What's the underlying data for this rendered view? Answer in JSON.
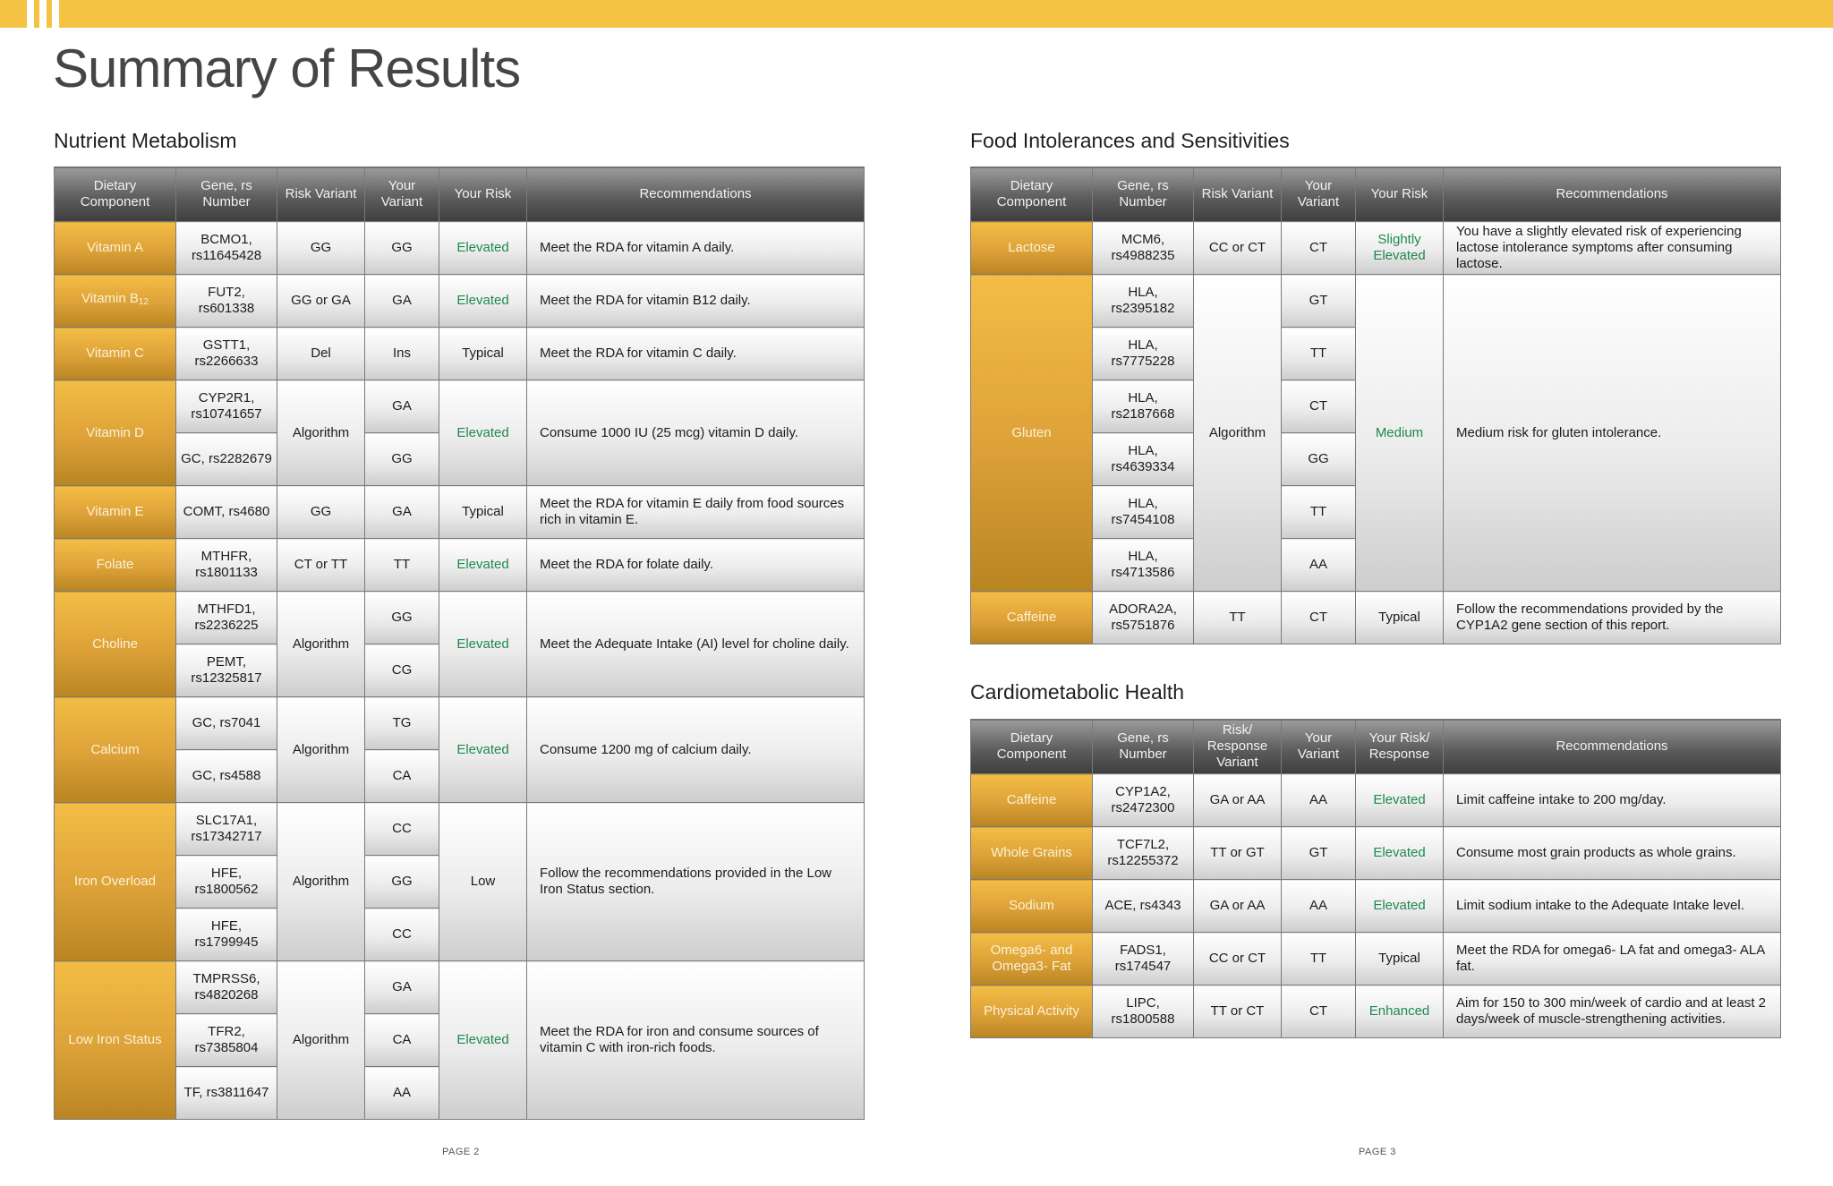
{
  "page_title": "Summary of Results",
  "colors": {
    "accent": "#f5c344",
    "component_gold": "#dca138",
    "header_gray": "#5d5d5d",
    "risk_green": "#1e8a4e"
  },
  "nutrient": {
    "title": "Nutrient Metabolism",
    "headers": [
      "Dietary Component",
      "Gene, rs Number",
      "Risk Variant",
      "Your Variant",
      "Your Risk",
      "Recommendations"
    ],
    "rows": [
      {
        "component": "Vitamin A",
        "genes": [
          "BCMO1, rs11645428"
        ],
        "risk_variant": "GG",
        "variants": [
          "GG"
        ],
        "risk": "Elevated",
        "rec": "Meet the RDA for vitamin A daily."
      },
      {
        "component": "Vitamin B",
        "component_sub": "12",
        "genes": [
          "FUT2, rs601338"
        ],
        "risk_variant": "GG or GA",
        "variants": [
          "GA"
        ],
        "risk": "Elevated",
        "rec": "Meet the RDA for vitamin B12 daily."
      },
      {
        "component": "Vitamin C",
        "genes": [
          "GSTT1, rs2266633"
        ],
        "risk_variant": "Del",
        "variants": [
          "Ins"
        ],
        "risk": "Typical",
        "rec": "Meet the RDA for vitamin C daily."
      },
      {
        "component": "Vitamin D",
        "genes": [
          "CYP2R1, rs10741657",
          "GC, rs2282679"
        ],
        "risk_variant": "Algorithm",
        "variants": [
          "GA",
          "GG"
        ],
        "risk": "Elevated",
        "rec": "Consume 1000 IU (25 mcg) vitamin D daily."
      },
      {
        "component": "Vitamin E",
        "genes": [
          "COMT, rs4680"
        ],
        "risk_variant": "GG",
        "variants": [
          "GA"
        ],
        "risk": "Typical",
        "rec": "Meet the RDA for vitamin E daily from food sources rich in vitamin E."
      },
      {
        "component": "Folate",
        "genes": [
          "MTHFR, rs1801133"
        ],
        "risk_variant": "CT or TT",
        "variants": [
          "TT"
        ],
        "risk": "Elevated",
        "rec": "Meet the RDA for folate daily."
      },
      {
        "component": "Choline",
        "genes": [
          "MTHFD1, rs2236225",
          "PEMT, rs12325817"
        ],
        "risk_variant": "Algorithm",
        "variants": [
          "GG",
          "CG"
        ],
        "risk": "Elevated",
        "rec": "Meet the Adequate Intake (AI) level for choline daily."
      },
      {
        "component": "Calcium",
        "genes": [
          "GC, rs7041",
          "GC, rs4588"
        ],
        "risk_variant": "Algorithm",
        "variants": [
          "TG",
          "CA"
        ],
        "risk": "Elevated",
        "rec": "Consume 1200 mg of calcium daily."
      },
      {
        "component": "Iron Overload",
        "genes": [
          "SLC17A1, rs17342717",
          "HFE, rs1800562",
          "HFE, rs1799945"
        ],
        "risk_variant": "Algorithm",
        "variants": [
          "CC",
          "GG",
          "CC"
        ],
        "risk": "Low",
        "rec": "Follow the recommendations provided in the Low Iron Status section."
      },
      {
        "component": "Low Iron Status",
        "genes": [
          "TMPRSS6, rs4820268",
          "TFR2, rs7385804",
          "TF, rs3811647"
        ],
        "risk_variant": "Algorithm",
        "variants": [
          "GA",
          "CA",
          "AA"
        ],
        "risk": "Elevated",
        "rec": "Meet the RDA for iron and consume sources of vitamin C with iron-rich foods."
      }
    ]
  },
  "food": {
    "title": "Food Intolerances and Sensitivities",
    "headers": [
      "Dietary Component",
      "Gene, rs Number",
      "Risk Variant",
      "Your Variant",
      "Your Risk",
      "Recommendations"
    ],
    "rows": [
      {
        "component": "Lactose",
        "genes": [
          "MCM6, rs4988235"
        ],
        "risk_variant": "CC or CT",
        "variants": [
          "CT"
        ],
        "risk": "Slightly Elevated",
        "rec": "You have a slightly elevated risk of experiencing lactose intolerance symptoms after consuming lactose."
      },
      {
        "component": "Gluten",
        "genes": [
          "HLA, rs2395182",
          "HLA, rs7775228",
          "HLA, rs2187668",
          "HLA, rs4639334",
          "HLA, rs7454108",
          "HLA, rs4713586"
        ],
        "risk_variant": "Algorithm",
        "variants": [
          "GT",
          "TT",
          "CT",
          "GG",
          "TT",
          "AA"
        ],
        "risk": "Medium",
        "rec": "Medium risk for gluten intolerance."
      },
      {
        "component": "Caffeine",
        "genes": [
          "ADORA2A, rs5751876"
        ],
        "risk_variant": "TT",
        "variants": [
          "CT"
        ],
        "risk": "Typical",
        "rec": "Follow the recommendations provided by the CYP1A2 gene section of this report."
      }
    ]
  },
  "cardio": {
    "title": "Cardiometabolic Health",
    "headers": [
      "Dietary Component",
      "Gene, rs Number",
      "Risk/ Response Variant",
      "Your Variant",
      "Your Risk/ Response",
      "Recommendations"
    ],
    "rows": [
      {
        "component": "Caffeine",
        "genes": [
          "CYP1A2, rs2472300"
        ],
        "risk_variant": "GA or AA",
        "variants": [
          "AA"
        ],
        "risk": "Elevated",
        "rec": "Limit caffeine intake to 200 mg/day."
      },
      {
        "component": "Whole Grains",
        "genes": [
          "TCF7L2, rs12255372"
        ],
        "risk_variant": "TT or GT",
        "variants": [
          "GT"
        ],
        "risk": "Elevated",
        "rec": "Consume most grain products as whole grains."
      },
      {
        "component": "Sodium",
        "genes": [
          "ACE, rs4343"
        ],
        "risk_variant": "GA or AA",
        "variants": [
          "AA"
        ],
        "risk": "Elevated",
        "rec": "Limit sodium intake to the Adequate Intake level."
      },
      {
        "component": "Omega6- and Omega3- Fat",
        "genes": [
          "FADS1, rs174547"
        ],
        "risk_variant": "CC or CT",
        "variants": [
          "TT"
        ],
        "risk": "Typical",
        "rec": "Meet the RDA for omega6- LA fat and omega3- ALA fat."
      },
      {
        "component": "Physical Activity",
        "genes": [
          "LIPC, rs1800588"
        ],
        "risk_variant": "TT or CT",
        "variants": [
          "CT"
        ],
        "risk": "Enhanced",
        "rec": "Aim for 150 to 300 min/week of cardio and at least 2 days/week of muscle-strengthening activities."
      }
    ]
  },
  "page_left": "PAGE 2",
  "page_right": "PAGE 3"
}
